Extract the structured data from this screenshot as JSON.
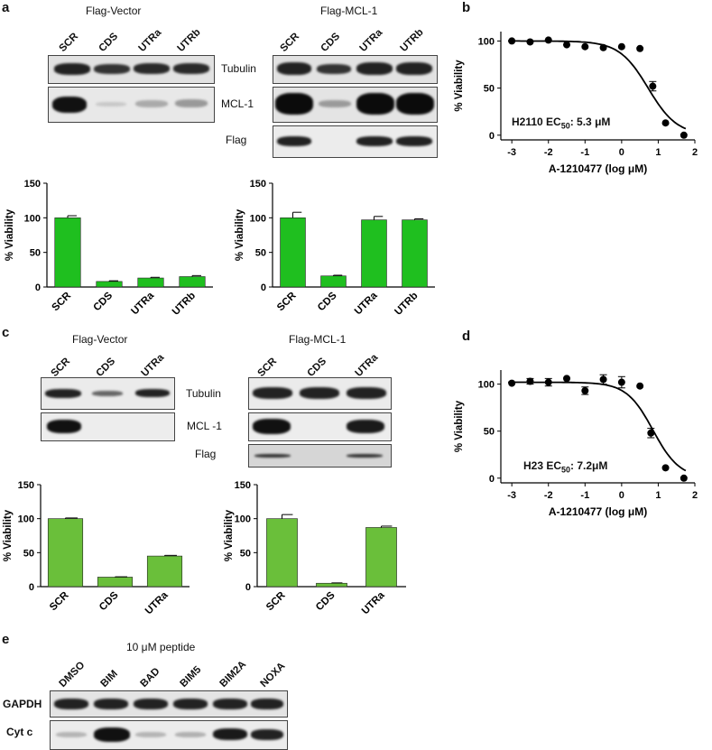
{
  "panel_a": {
    "letter": "a",
    "left_title": "Flag-Vector",
    "right_title": "Flag-MCL-1",
    "lanes": [
      "SCR",
      "CDS",
      "UTRa",
      "UTRb"
    ],
    "blot_labels": [
      "Tubulin",
      "MCL-1",
      "Flag"
    ]
  },
  "panel_b": {
    "letter": "b",
    "annotation_prefix": "H2110 EC",
    "annotation_sub": "50",
    "annotation_suffix": ": 5.3 μM"
  },
  "panel_c": {
    "letter": "c",
    "left_title": "Flag-Vector",
    "right_title": "Flag-MCL-1",
    "lanes": [
      "SCR",
      "CDS",
      "UTRa"
    ],
    "blot_labels": [
      "Tubulin",
      "MCL -1",
      "Flag"
    ]
  },
  "panel_d": {
    "letter": "d",
    "annotation_prefix": "H23 EC",
    "annotation_sub": "50",
    "annotation_suffix": ": 7.2μM"
  },
  "panel_e": {
    "letter": "e",
    "title": "10 μM peptide",
    "lanes": [
      "DMSO",
      "BIM",
      "BAD",
      "BIM5",
      "BIM2A",
      "NOXA"
    ],
    "blot_labels": [
      "GAPDH",
      "Cyt c"
    ]
  },
  "colors": {
    "bar_a": "#1fbf1f",
    "bar_c": "#6abf3a",
    "line": "#000000"
  },
  "chart_data": [
    {
      "id": "a-left",
      "type": "bar",
      "categories": [
        "SCR",
        "CDS",
        "UTRa",
        "UTRb"
      ],
      "values": [
        100,
        8,
        13,
        15
      ],
      "errors": [
        3,
        1,
        1,
        1.5
      ],
      "ylabel": "% Viability",
      "ylim": [
        0,
        150
      ],
      "yticks": [
        0,
        50,
        100,
        150
      ]
    },
    {
      "id": "a-right",
      "type": "bar",
      "categories": [
        "SCR",
        "CDS",
        "UTRa",
        "UTRb"
      ],
      "values": [
        100,
        16,
        97,
        97
      ],
      "errors": [
        8,
        1,
        5,
        1.5
      ],
      "ylabel": "% Viability",
      "ylim": [
        0,
        150
      ],
      "yticks": [
        0,
        50,
        100,
        150
      ]
    },
    {
      "id": "b",
      "type": "scatter",
      "x": [
        -3,
        -2.5,
        -2,
        -1.5,
        -1,
        -0.5,
        0,
        0.5,
        0.85,
        1.2,
        1.7
      ],
      "y": [
        100,
        99,
        101,
        96,
        94,
        93,
        94,
        92,
        52,
        13,
        0
      ],
      "errors": [
        0,
        0,
        0,
        0,
        0,
        0,
        0,
        0,
        5,
        0,
        0
      ],
      "fit": {
        "top": 100,
        "bottom": 0,
        "log_ec50": 0.724,
        "hill": 1.1
      },
      "xlabel": "A-1210477 (log μM)",
      "ylabel": "% Viability",
      "xlim": [
        -3.3,
        2
      ],
      "ylim": [
        -5,
        110
      ],
      "xticks": [
        -3,
        -2,
        -1,
        0,
        1,
        2
      ],
      "yticks": [
        0,
        50,
        100
      ]
    },
    {
      "id": "c-left",
      "type": "bar",
      "categories": [
        "SCR",
        "CDS",
        "UTRa"
      ],
      "values": [
        100,
        14,
        45
      ],
      "errors": [
        1,
        0.5,
        1
      ],
      "ylabel": "% Viability",
      "ylim": [
        0,
        150
      ],
      "yticks": [
        0,
        50,
        100,
        150
      ]
    },
    {
      "id": "c-right",
      "type": "bar",
      "categories": [
        "SCR",
        "CDS",
        "UTRa"
      ],
      "values": [
        100,
        5,
        87
      ],
      "errors": [
        6,
        0.5,
        2
      ],
      "ylabel": "% Viability",
      "ylim": [
        0,
        150
      ],
      "yticks": [
        0,
        50,
        100,
        150
      ]
    },
    {
      "id": "d",
      "type": "scatter",
      "x": [
        -3,
        -2.5,
        -2,
        -1.5,
        -1,
        -0.5,
        0,
        0.5,
        0.8,
        1.2,
        1.7
      ],
      "y": [
        101,
        103,
        102,
        106,
        93,
        105,
        102,
        98,
        48,
        11,
        0
      ],
      "errors": [
        0,
        3,
        4,
        0,
        4,
        5,
        6,
        0,
        5,
        0,
        0
      ],
      "fit": {
        "top": 102,
        "bottom": 0,
        "log_ec50": 0.857,
        "hill": 1.2
      },
      "xlabel": "A-1210477 (log μM)",
      "ylabel": "% Viability",
      "xlim": [
        -3.3,
        2
      ],
      "ylim": [
        -5,
        115
      ],
      "xticks": [
        -3,
        -2,
        -1,
        0,
        1,
        2
      ],
      "yticks": [
        0,
        50,
        100
      ]
    }
  ]
}
